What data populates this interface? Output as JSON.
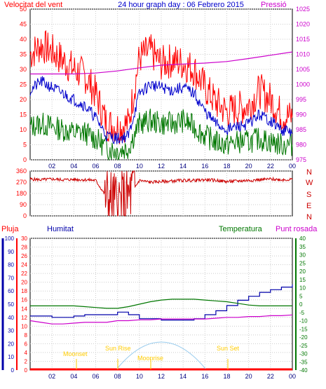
{
  "title": "24 hour graph day : 06 Febrero 2015",
  "top_panel": {
    "left_label": "Velocitat del vent",
    "right_label": "Pressió"
  },
  "compass": [
    "N",
    "W",
    "S",
    "E",
    "N"
  ],
  "bottom_panel": {
    "labels": {
      "rain": "Pluja",
      "humidity": "Humitat",
      "temperature": "Temperatura",
      "dewpoint": "Punt rosada"
    },
    "markers": {
      "sunrise": "Sun Rise",
      "sunset": "Sun Set",
      "moonrise": "Moonrise",
      "moonset": "Moonset"
    }
  },
  "colors": {
    "wind_gust": "#ff0000",
    "wind_avg": "#0000cc",
    "wind_low": "#007700",
    "pressure": "#cc00cc",
    "direction": "#cc0000",
    "humidity": "#0000aa",
    "temperature": "#007700",
    "dewpoint": "#cc00cc",
    "rain": "#ff0000",
    "sunrise_label": "#ffcc00",
    "moon_arc": "#99ccee",
    "grid": "#cccccc"
  },
  "chart_data": [
    {
      "type": "line",
      "title": "24 hour graph day : 06 Febrero 2015",
      "xticks": [
        "02",
        "04",
        "06",
        "08",
        "10",
        "12",
        "14",
        "16",
        "18",
        "20",
        "22",
        "00"
      ],
      "ylim_left": [
        0,
        50
      ],
      "yticks_left": [
        0,
        5,
        10,
        15,
        20,
        25,
        30,
        35,
        40,
        45,
        50
      ],
      "ylim_right": [
        975,
        1025
      ],
      "yticks_right": [
        975,
        980,
        985,
        990,
        995,
        1000,
        1005,
        1010,
        1015,
        1020,
        1025
      ],
      "grid": true,
      "series": [
        {
          "name": "Velocitat del vent",
          "axis": "left",
          "x": [
            0,
            1,
            2,
            3,
            4,
            5,
            6,
            7,
            8,
            9,
            10,
            11,
            12,
            13,
            14,
            15,
            16,
            17,
            18,
            19,
            20,
            21,
            22,
            23,
            24
          ],
          "y": [
            35,
            38,
            36,
            33,
            30,
            28,
            22,
            12,
            11,
            12,
            34,
            36,
            32,
            33,
            32,
            30,
            24,
            19,
            16,
            17,
            18,
            23,
            20,
            15,
            14
          ]
        },
        {
          "axis": "left",
          "x": [
            0,
            1,
            2,
            3,
            4,
            5,
            6,
            7,
            8,
            9,
            10,
            11,
            12,
            13,
            14,
            15,
            16,
            17,
            18,
            19,
            20,
            21,
            22,
            23,
            24
          ],
          "y": [
            23,
            26,
            24,
            22,
            20,
            18,
            14,
            8,
            7,
            8,
            22,
            25,
            24,
            23,
            24,
            22,
            16,
            12,
            10,
            11,
            12,
            15,
            13,
            10,
            9
          ]
        },
        {
          "axis": "left",
          "x": [
            0,
            1,
            2,
            3,
            4,
            5,
            6,
            7,
            8,
            9,
            10,
            11,
            12,
            13,
            14,
            15,
            16,
            17,
            18,
            19,
            20,
            21,
            22,
            23,
            24
          ],
          "y": [
            11,
            12,
            11,
            10,
            9,
            9,
            7,
            4,
            3,
            4,
            12,
            13,
            12,
            12,
            13,
            11,
            8,
            6,
            5,
            6,
            6,
            7,
            6,
            5,
            5
          ]
        },
        {
          "name": "Pressió",
          "axis": "right",
          "x": [
            0,
            2,
            4,
            6,
            8,
            10,
            12,
            14,
            16,
            18,
            20,
            22,
            24
          ],
          "y": [
            1003.5,
            1003.5,
            1003.5,
            1003.8,
            1004.5,
            1005.5,
            1006.4,
            1006.8,
            1007.1,
            1007.6,
            1008.6,
            1009.7,
            1010.8
          ]
        }
      ]
    },
    {
      "type": "line",
      "xticks": [
        "02",
        "04",
        "06",
        "08",
        "10",
        "12",
        "14",
        "16",
        "18",
        "20",
        "22",
        "00"
      ],
      "ylim": [
        0,
        360
      ],
      "yticks": [
        0,
        90,
        180,
        270,
        360
      ],
      "grid": true,
      "series": [
        {
          "x": [
            0,
            1,
            2,
            3,
            4,
            5,
            6,
            7,
            8,
            9,
            10,
            11,
            12,
            13,
            14,
            15,
            16,
            17,
            18,
            19,
            20,
            21,
            22,
            23,
            24
          ],
          "y": [
            295,
            290,
            295,
            290,
            292,
            290,
            285,
            150,
            100,
            150,
            285,
            270,
            275,
            280,
            285,
            285,
            290,
            285,
            275,
            280,
            285,
            290,
            295,
            290,
            292
          ]
        }
      ]
    },
    {
      "type": "line",
      "xticks": [
        "02",
        "04",
        "06",
        "08",
        "10",
        "12",
        "14",
        "16",
        "18",
        "20",
        "22",
        "00"
      ],
      "ylim_rain": [
        0,
        30
      ],
      "yticks_rain": [
        0,
        2,
        4,
        6,
        8,
        10,
        12,
        14,
        16,
        18,
        20,
        22,
        24,
        26,
        28,
        30
      ],
      "ylim_humidity": [
        0,
        100
      ],
      "yticks_humidity": [
        0,
        10,
        20,
        30,
        40,
        50,
        60,
        70,
        80,
        90,
        100
      ],
      "ylim_temperature": [
        -40,
        40
      ],
      "yticks_temperature": [
        -40,
        -35,
        -30,
        -25,
        -20,
        -15,
        -10,
        -5,
        0,
        5,
        10,
        15,
        20,
        25,
        30,
        35,
        40
      ],
      "grid": true,
      "series": [
        {
          "name": "Humitat",
          "axis": "humidity",
          "x": [
            0,
            1,
            2,
            3,
            4,
            5,
            6,
            7,
            8,
            9,
            10,
            11,
            12,
            13,
            14,
            15,
            16,
            17,
            18,
            19,
            20,
            21,
            22,
            23,
            24
          ],
          "y": [
            41,
            41,
            40,
            40,
            41,
            42,
            42,
            42,
            44,
            42,
            39,
            39,
            38,
            38,
            38,
            39,
            42,
            45,
            49,
            53,
            56,
            59,
            61,
            63,
            65
          ]
        },
        {
          "name": "Temperatura",
          "axis": "temperature",
          "x": [
            0,
            1,
            2,
            3,
            4,
            5,
            6,
            7,
            8,
            9,
            10,
            11,
            12,
            13,
            14,
            15,
            16,
            17,
            18,
            19,
            20,
            21,
            22,
            23,
            24
          ],
          "y": [
            -1,
            -1,
            -1,
            -1,
            -1,
            -1.5,
            -2,
            -2.5,
            -2.5,
            -1.5,
            0,
            1.5,
            2.5,
            3,
            3,
            3,
            2.5,
            2,
            1.5,
            0.5,
            -0.5,
            -1,
            -1,
            -1,
            -1
          ]
        },
        {
          "name": "Punt rosada",
          "axis": "temperature",
          "x": [
            0,
            1,
            2,
            3,
            4,
            5,
            6,
            7,
            8,
            9,
            10,
            11,
            12,
            13,
            14,
            15,
            16,
            17,
            18,
            19,
            20,
            21,
            22,
            23,
            24
          ],
          "y": [
            -10,
            -11,
            -12,
            -12,
            -11.5,
            -11,
            -11,
            -11,
            -10,
            -10,
            -9.5,
            -9.5,
            -9,
            -9,
            -9,
            -9,
            -9,
            -8.5,
            -8,
            -8,
            -7.5,
            -7.5,
            -7,
            -7,
            -6.5
          ]
        },
        {
          "name": "Pluja",
          "axis": "rain",
          "x": [
            0,
            24
          ],
          "y": [
            0,
            0
          ]
        }
      ]
    }
  ]
}
